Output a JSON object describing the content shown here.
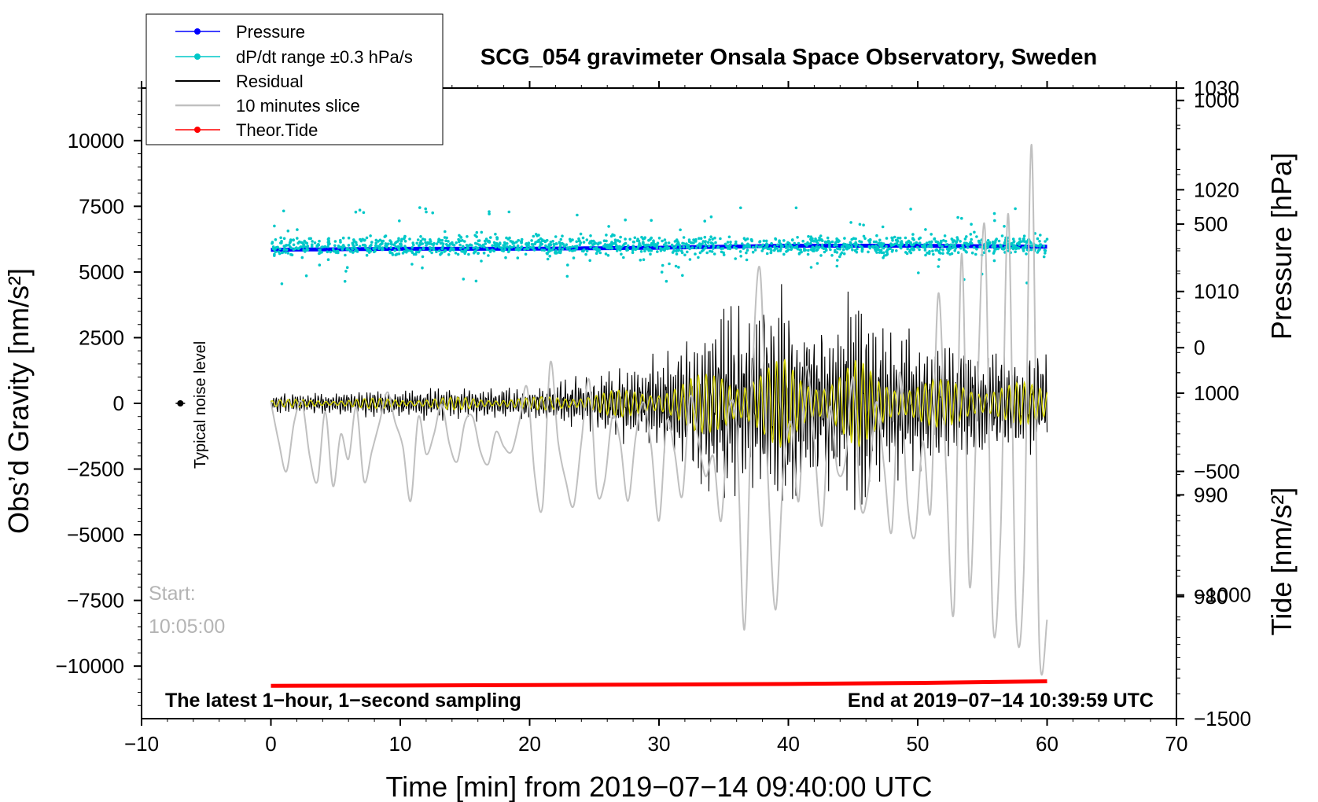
{
  "chart_data": {
    "type": "line",
    "title": "SCG_054 gravimeter Onsala Space Observatory, Sweden",
    "xlabel": "Time [min] from 2019−07−14 09:40:00 UTC",
    "ylabel_left": "Obs’d Gravity [nm/s²]",
    "ylabel_right_pressure": "Pressure [hPa]",
    "ylabel_right_tide": "Tide [nm/s²]",
    "xlim": [
      -10,
      70
    ],
    "ylim_left": [
      -12000,
      12000
    ],
    "ylim_pressure": [
      968,
      1030
    ],
    "ylim_tide": [
      -1500,
      1050
    ],
    "x_ticks": [
      "−10",
      "0",
      "10",
      "20",
      "30",
      "40",
      "50",
      "60",
      "70"
    ],
    "x_tick_values": [
      -10,
      0,
      10,
      20,
      30,
      40,
      50,
      60,
      70
    ],
    "y_left_ticks": [
      "10000",
      "7500",
      "5000",
      "2500",
      "0",
      "−2500",
      "−5000",
      "−7500",
      "−10000"
    ],
    "y_left_tick_values": [
      10000,
      7500,
      5000,
      2500,
      0,
      -2500,
      -5000,
      -7500,
      -10000
    ],
    "y_pressure_ticks": [
      "1030",
      "1020",
      "1010",
      "1000",
      "990",
      "980"
    ],
    "y_pressure_tick_values": [
      1030,
      1020,
      1010,
      1000,
      990,
      980
    ],
    "y_tide_ticks": [
      "1000",
      "500",
      "0",
      "−500",
      "−1000",
      "−1500"
    ],
    "y_tide_tick_values": [
      1000,
      500,
      0,
      -500,
      -1000,
      -1500
    ],
    "grid": false,
    "legend_position": "top-left",
    "series": [
      {
        "name": "Pressure",
        "color": "#0000ff",
        "axis": "pressure",
        "x": [
          0,
          10,
          20,
          30,
          40,
          50,
          60
        ],
        "values": [
          1014.1,
          1014.2,
          1014.2,
          1014.3,
          1014.5,
          1014.5,
          1014.4
        ]
      },
      {
        "name": "dP/dt range ±0.3 hPa/s",
        "color": "#00c8c8",
        "axis": "left",
        "center": 6000,
        "spread": 300,
        "range_min": 4400,
        "range_max": 7700
      },
      {
        "name": "Residual",
        "color": "#000000",
        "axis": "left",
        "envelope_x": [
          0,
          5,
          10,
          15,
          20,
          22,
          25,
          28,
          30,
          32,
          34,
          35,
          36,
          38,
          39.8,
          41,
          43,
          45.3,
          47,
          50,
          52,
          55,
          58,
          60
        ],
        "envelope_amp": [
          400,
          500,
          600,
          700,
          600,
          900,
          1200,
          1600,
          2000,
          2600,
          3600,
          4500,
          3800,
          4000,
          5000,
          3600,
          3500,
          4900,
          3200,
          2800,
          2600,
          2400,
          2300,
          2100
        ]
      },
      {
        "name": "10 minutes slice",
        "color": "#c0c0c0",
        "axis": "tide",
        "start_label": "Start:",
        "start_time": "10:05:00",
        "x": [
          0,
          0.6,
          1.2,
          1.8,
          2.4,
          3.0,
          3.6,
          4.2,
          4.8,
          5.4,
          6.0,
          6.6,
          7.2,
          7.8,
          8.4,
          9.0,
          9.6,
          10.2,
          10.8,
          11.4,
          12.0,
          12.6,
          13.2,
          13.8,
          14.4,
          15.0,
          15.6,
          16.2,
          16.8,
          17.4,
          18.0,
          18.6,
          19.2,
          19.8,
          20.4,
          21.0,
          21.6,
          22.2,
          22.8,
          23.4,
          24.0,
          24.6,
          25.2,
          25.8,
          26.4,
          27.0,
          27.6,
          28.2,
          28.8,
          29.4,
          30.0,
          30.6,
          31.2,
          31.8,
          32.4,
          33.0,
          33.6,
          34.2,
          34.8,
          35.4,
          36.0,
          36.6,
          37.2,
          37.8,
          38.4,
          39.0,
          39.6,
          40.2,
          40.8,
          41.4,
          42.0,
          42.6,
          43.2,
          43.8,
          44.4,
          45.0,
          45.6,
          46.2,
          46.8,
          47.4,
          48.0,
          48.6,
          49.2,
          49.8,
          50.4,
          51.0,
          51.6,
          52.2,
          52.8,
          53.4,
          54.0,
          54.6,
          55.2,
          55.8,
          56.4,
          57.0,
          57.6,
          58.2,
          58.8,
          59.4,
          60.0
        ],
        "values": [
          -220,
          -380,
          -500,
          -300,
          -220,
          -440,
          -540,
          -260,
          -560,
          -350,
          -450,
          -240,
          -540,
          -420,
          -300,
          -180,
          -300,
          -400,
          -620,
          -280,
          -430,
          -350,
          -230,
          -390,
          -460,
          -300,
          -280,
          -420,
          -470,
          -340,
          -400,
          -420,
          -300,
          -160,
          -520,
          -640,
          -60,
          -380,
          -540,
          -640,
          -380,
          -130,
          -580,
          -540,
          -280,
          -380,
          -620,
          -360,
          -220,
          -400,
          -700,
          -300,
          -420,
          -600,
          -200,
          -360,
          -520,
          -440,
          -700,
          -260,
          -320,
          -1140,
          -140,
          320,
          -500,
          -1060,
          -520,
          -300,
          -620,
          -80,
          -380,
          -720,
          -240,
          -500,
          -460,
          -120,
          -640,
          -560,
          -220,
          -480,
          -740,
          -100,
          -620,
          -760,
          -380,
          -660,
          220,
          -500,
          -1060,
          380,
          -960,
          -200,
          480,
          -1100,
          -760,
          540,
          -1080,
          -900,
          820,
          -1200,
          -1100
        ]
      },
      {
        "name": "Theor.Tide",
        "color": "#ff0000",
        "axis": "left",
        "x": [
          0,
          10,
          20,
          30,
          40,
          50,
          60
        ],
        "values": [
          -10750,
          -10740,
          -10720,
          -10700,
          -10680,
          -10640,
          -10580
        ]
      }
    ],
    "annotations": {
      "noise_label": "Typical noise level",
      "noise_marker": {
        "x": -7,
        "y": 0
      },
      "bottom_left": "The latest 1−hour, 1−second sampling",
      "bottom_right": "End at 2019−07−14 10:39:59 UTC"
    }
  }
}
